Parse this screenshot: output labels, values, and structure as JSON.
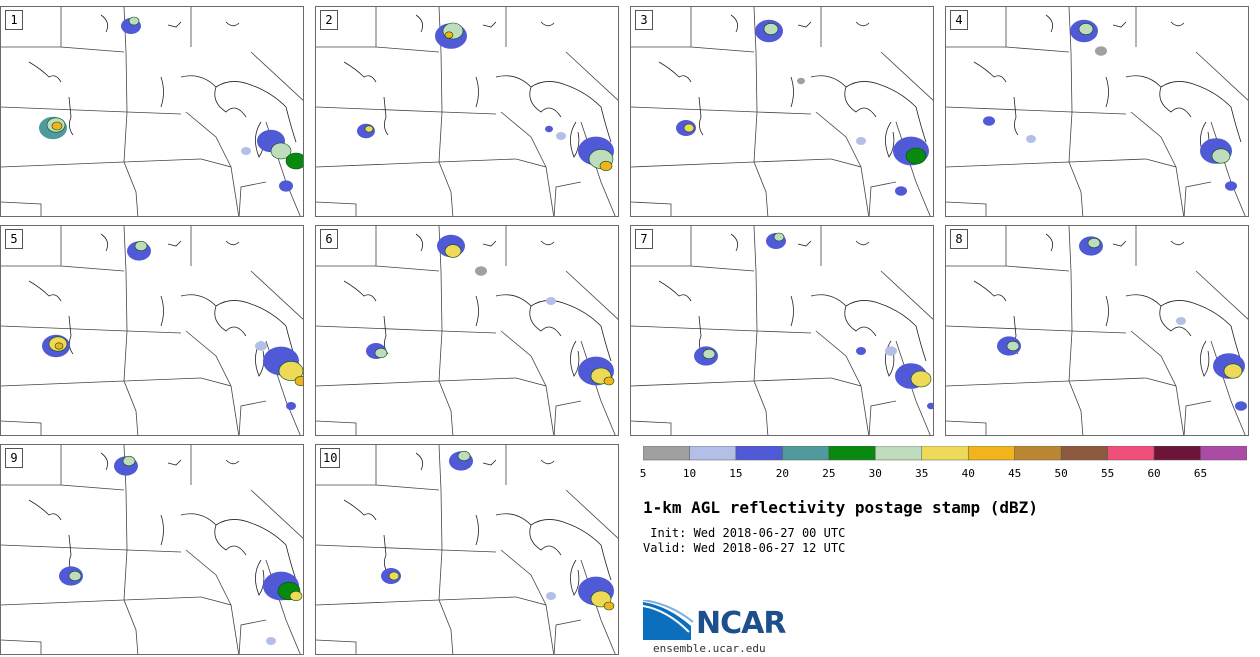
{
  "panels": [
    {
      "label": "1"
    },
    {
      "label": "2"
    },
    {
      "label": "3"
    },
    {
      "label": "4"
    },
    {
      "label": "5"
    },
    {
      "label": "6"
    },
    {
      "label": "7"
    },
    {
      "label": "8"
    },
    {
      "label": "9"
    },
    {
      "label": "10"
    }
  ],
  "colorbar": {
    "colors": [
      "#a0a0a0",
      "#b4bfe8",
      "#5059d6",
      "#4e9a9c",
      "#078a0e",
      "#bfdcbd",
      "#efd959",
      "#f1b41d",
      "#bb8733",
      "#8e5a3d",
      "#f14f7b",
      "#6d1438",
      "#ab4ba6"
    ],
    "ticks": [
      "5",
      "10",
      "15",
      "20",
      "25",
      "30",
      "35",
      "40",
      "45",
      "50",
      "55",
      "60",
      "65"
    ]
  },
  "title": "1-km AGL reflectivity postage stamp (dBZ)",
  "init": " Init: Wed 2018-06-27 00 UTC",
  "valid": "Valid: Wed 2018-06-27 12 UTC",
  "logo": {
    "text": "NCAR",
    "icon": "ncar-logo-icon"
  },
  "site": "ensemble.ucar.edu"
}
